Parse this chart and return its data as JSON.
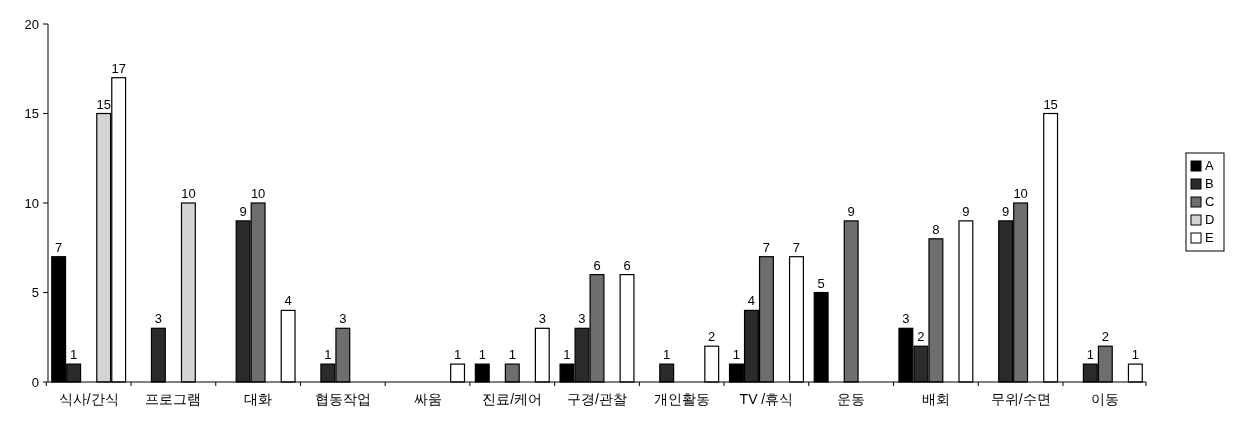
{
  "chart_data": {
    "type": "bar",
    "categories": [
      "식사/간식",
      "프로그램",
      "대화",
      "협동작업",
      "싸움",
      "진료/케어",
      "구경/관찰",
      "개인활동",
      "TV /휴식",
      "운동",
      "배회",
      "무위/수면",
      "이동"
    ],
    "series": [
      {
        "name": "A",
        "color": "#000000",
        "values": [
          7,
          null,
          null,
          null,
          null,
          1,
          1,
          null,
          1,
          5,
          3,
          null,
          null
        ]
      },
      {
        "name": "B",
        "color": "#2b2b2b",
        "values": [
          1,
          3,
          9,
          1,
          null,
          null,
          3,
          1,
          4,
          null,
          2,
          9,
          1
        ]
      },
      {
        "name": "C",
        "color": "#6e6e6e",
        "values": [
          null,
          null,
          10,
          3,
          null,
          1,
          6,
          null,
          7,
          9,
          8,
          10,
          2
        ]
      },
      {
        "name": "D",
        "color": "#d4d4d4",
        "values": [
          15,
          10,
          null,
          null,
          null,
          null,
          null,
          null,
          null,
          null,
          null,
          null,
          null
        ]
      },
      {
        "name": "E",
        "color": "#ffffff",
        "values": [
          17,
          null,
          4,
          null,
          1,
          3,
          6,
          2,
          7,
          null,
          9,
          15,
          1
        ]
      }
    ],
    "ylim": [
      0,
      20
    ],
    "yticks": [
      0,
      5,
      10,
      15,
      20
    ],
    "grid": false,
    "legend": "right",
    "data_labels": true
  }
}
